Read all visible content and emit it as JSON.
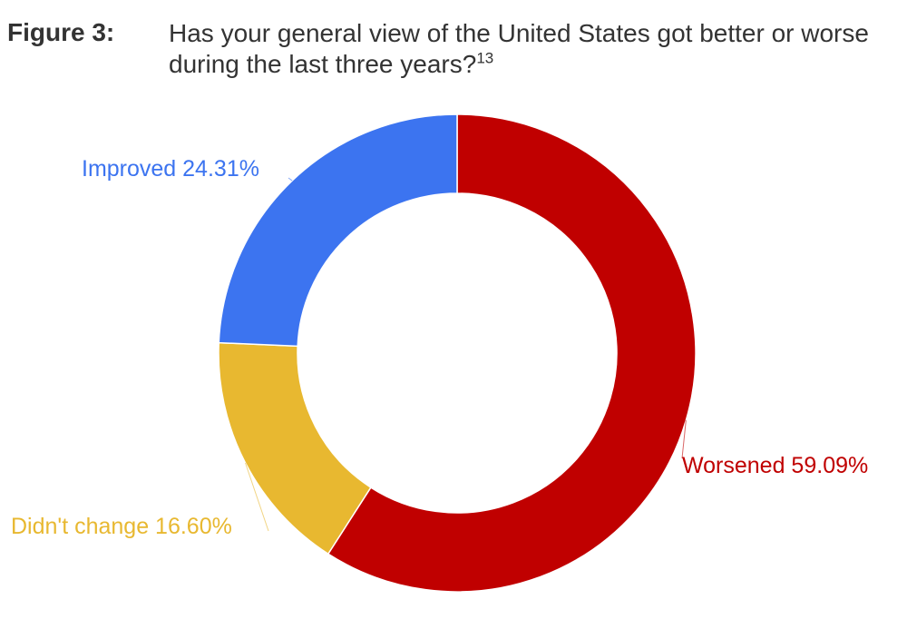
{
  "figure": {
    "label": "Figure 3:",
    "title": "Has your general view of the United States got better or worse during the last three years?",
    "footnote_ref": "13"
  },
  "chart_data": {
    "type": "pie",
    "variant": "donut",
    "title": "Has your general view of the United States got better or worse during the last three years?",
    "slices": [
      {
        "label": "Worsened 59.09%",
        "category": "Worsened",
        "value": 59.09,
        "color": "#c00000"
      },
      {
        "label": "Didn't change 16.60%",
        "category": "Didn't change",
        "value": 16.6,
        "color": "#e8b830"
      },
      {
        "label": "Improved 24.31%",
        "category": "Improved",
        "value": 24.31,
        "color": "#3c74f0"
      }
    ]
  }
}
